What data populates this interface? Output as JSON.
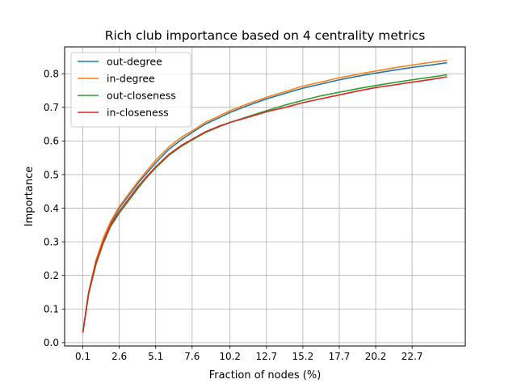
{
  "chart_data": {
    "type": "line",
    "title": "Rich club importance based on 4 centrality metrics",
    "xlabel": "Fraction of nodes (%)",
    "ylabel": "Importance",
    "xlim": [
      -1.15,
      26.35
    ],
    "ylim": [
      -0.01,
      0.88
    ],
    "xticks": [
      0.1,
      2.6,
      5.1,
      7.6,
      10.2,
      12.7,
      15.2,
      17.7,
      20.2,
      22.7
    ],
    "xtick_labels": [
      "0.1",
      "2.6",
      "5.1",
      "7.6",
      "10.2",
      "12.7",
      "15.2",
      "17.7",
      "20.2",
      "22.7"
    ],
    "yticks": [
      0.0,
      0.1,
      0.2,
      0.3,
      0.4,
      0.5,
      0.6,
      0.7,
      0.8
    ],
    "ytick_labels": [
      "0.0",
      "0.1",
      "0.2",
      "0.3",
      "0.4",
      "0.5",
      "0.6",
      "0.7",
      "0.8"
    ],
    "grid": true,
    "legend_position": "top-left",
    "x": [
      0.1,
      0.5,
      1.0,
      1.5,
      2.0,
      2.6,
      3.2,
      3.9,
      4.5,
      5.1,
      6.0,
      6.9,
      7.6,
      8.5,
      9.5,
      10.2,
      11.4,
      12.7,
      14.0,
      15.2,
      16.5,
      17.7,
      19.0,
      20.2,
      21.5,
      22.7,
      24.0,
      25.1
    ],
    "series": [
      {
        "name": "out-degree",
        "color": "#1f77b4",
        "values": [
          0.03,
          0.15,
          0.24,
          0.305,
          0.355,
          0.4,
          0.435,
          0.475,
          0.505,
          0.535,
          0.575,
          0.605,
          0.625,
          0.65,
          0.67,
          0.685,
          0.705,
          0.725,
          0.742,
          0.757,
          0.77,
          0.782,
          0.793,
          0.802,
          0.811,
          0.819,
          0.826,
          0.833
        ]
      },
      {
        "name": "in-degree",
        "color": "#ff7f0e",
        "values": [
          0.03,
          0.15,
          0.245,
          0.31,
          0.36,
          0.405,
          0.44,
          0.48,
          0.512,
          0.543,
          0.582,
          0.612,
          0.63,
          0.655,
          0.675,
          0.69,
          0.71,
          0.73,
          0.747,
          0.763,
          0.776,
          0.788,
          0.799,
          0.808,
          0.818,
          0.826,
          0.834,
          0.84
        ]
      },
      {
        "name": "out-closeness",
        "color": "#2ca02c",
        "values": [
          0.03,
          0.145,
          0.232,
          0.295,
          0.345,
          0.385,
          0.42,
          0.46,
          0.492,
          0.52,
          0.557,
          0.585,
          0.603,
          0.625,
          0.643,
          0.655,
          0.672,
          0.69,
          0.707,
          0.721,
          0.735,
          0.745,
          0.756,
          0.765,
          0.774,
          0.782,
          0.79,
          0.797
        ]
      },
      {
        "name": "in-closeness",
        "color": "#d62728",
        "values": [
          0.03,
          0.148,
          0.238,
          0.3,
          0.35,
          0.39,
          0.425,
          0.465,
          0.495,
          0.523,
          0.56,
          0.588,
          0.605,
          0.627,
          0.645,
          0.655,
          0.67,
          0.687,
          0.7,
          0.714,
          0.726,
          0.737,
          0.749,
          0.759,
          0.767,
          0.775,
          0.783,
          0.791
        ]
      }
    ]
  }
}
